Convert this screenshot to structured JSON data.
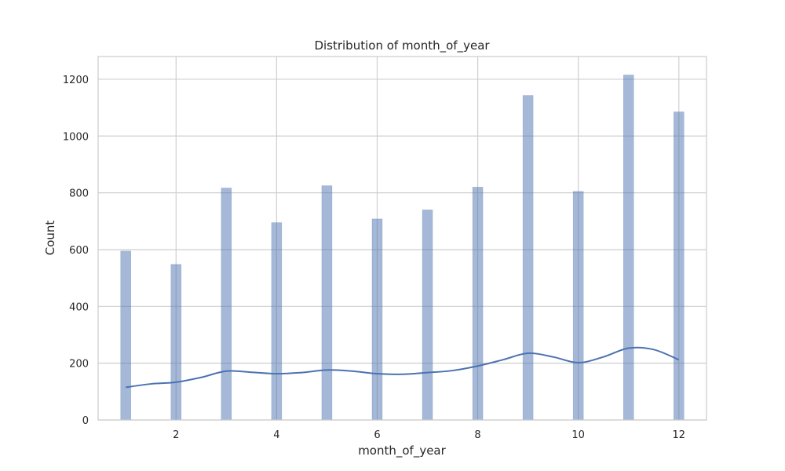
{
  "chart_data": {
    "type": "bar",
    "title": "Distribution of month_of_year",
    "xlabel": "month_of_year",
    "ylabel": "Count",
    "xlim": [
      0.45,
      12.55
    ],
    "ylim": [
      0,
      1280
    ],
    "x_ticks": [
      2,
      4,
      6,
      8,
      10,
      12
    ],
    "y_ticks": [
      0,
      200,
      400,
      600,
      800,
      1000,
      1200
    ],
    "grid": true,
    "categories": [
      1,
      2,
      3,
      4,
      5,
      6,
      7,
      8,
      9,
      10,
      11,
      12
    ],
    "values": [
      595,
      548,
      817,
      695,
      825,
      708,
      740,
      820,
      1143,
      805,
      1215,
      1085
    ],
    "kde": {
      "x": [
        1.0,
        1.5,
        2.0,
        2.5,
        3.0,
        3.5,
        4.0,
        4.5,
        5.0,
        5.5,
        6.0,
        6.5,
        7.0,
        7.5,
        8.0,
        8.5,
        9.0,
        9.5,
        10.0,
        10.5,
        11.0,
        11.5,
        12.0
      ],
      "y": [
        115,
        127,
        133,
        150,
        172,
        168,
        163,
        167,
        176,
        172,
        163,
        161,
        167,
        174,
        190,
        212,
        235,
        222,
        202,
        222,
        253,
        248,
        212
      ]
    },
    "colors": {
      "bar": "#4c72b0",
      "kde": "#4c72b0",
      "grid": "#cfcfcf",
      "spine": "#cccccc"
    }
  }
}
